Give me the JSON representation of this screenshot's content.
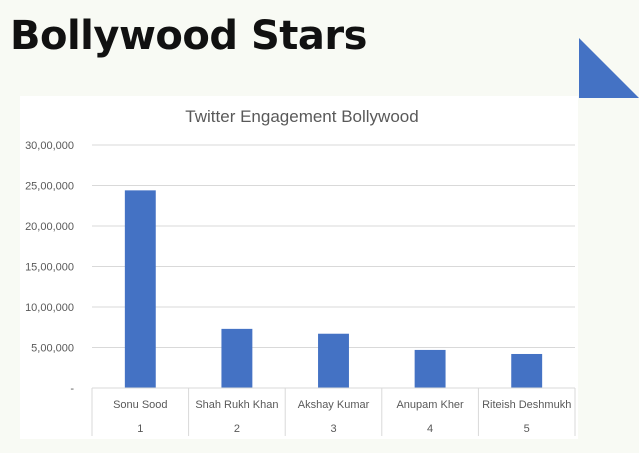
{
  "slide": {
    "title": "Bollywood Stars"
  },
  "colors": {
    "accent": "#4472c4",
    "bar": "#4472c4",
    "gridline": "#d9d9d9",
    "text": "#595959",
    "title_text": "#111111"
  },
  "chart_data": {
    "type": "bar",
    "title": "Twitter Engagement Bollywood",
    "xlabel": "",
    "ylabel": "",
    "categories": [
      "Sonu Sood",
      "Shah Rukh Khan",
      "Akshay Kumar",
      "Anupam Kher",
      "Riteish Deshmukh"
    ],
    "category_index": [
      "1",
      "2",
      "3",
      "4",
      "5"
    ],
    "values": [
      2440000,
      730000,
      670000,
      470000,
      420000
    ],
    "ylim": [
      0,
      3000000
    ],
    "yticks": [
      0,
      500000,
      1000000,
      1500000,
      2000000,
      2500000,
      3000000
    ],
    "ytick_labels": [
      "-",
      "5,00,000",
      "10,00,000",
      "15,00,000",
      "20,00,000",
      "25,00,000",
      "30,00,000"
    ],
    "grid": true,
    "legend": "none"
  }
}
